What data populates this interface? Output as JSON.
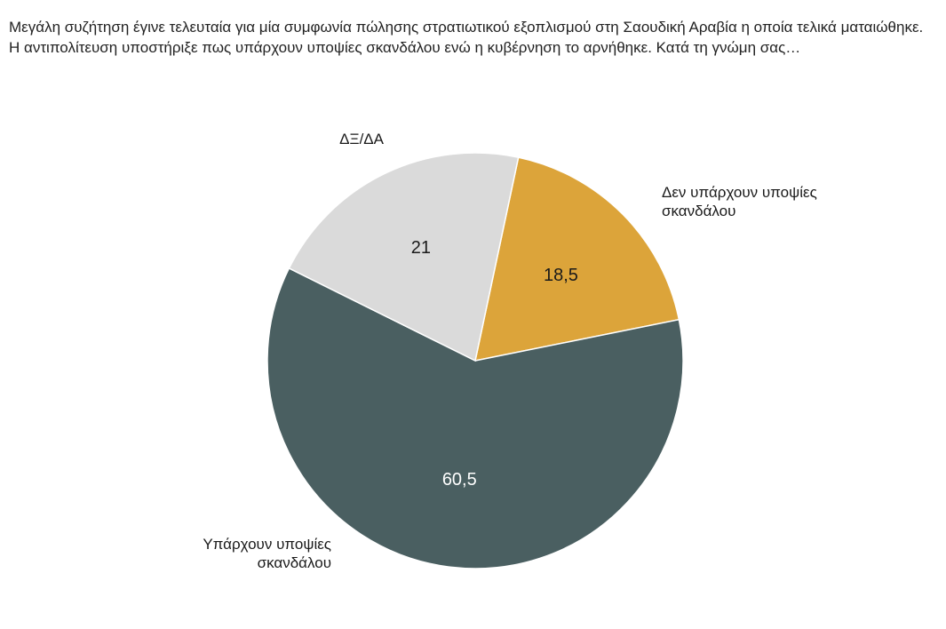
{
  "question": "Μεγάλη συζήτηση έγινε τελευταία για μία συμφωνία πώλησης στρατιωτικού εξοπλισμού στη Σαουδική Αραβία η οποία τελικά ματαιώθηκε. Η αντιπολίτευση υποστήριξε πως υπάρχουν υποψίες σκανδάλου ενώ η κυβέρνηση το αρνήθηκε. Κατά τη γνώμη σας…",
  "chart_data": {
    "type": "pie",
    "title": "",
    "slices": [
      {
        "label_lines": [
          "Δεν υπάρχουν υποψίες",
          "σκανδάλου"
        ],
        "value": 18.5,
        "value_label": "18,5",
        "color": "#dca43a",
        "value_color": "#1a1a1a"
      },
      {
        "label_lines": [
          "Υπάρχουν υποψίες",
          "σκανδάλου"
        ],
        "value": 60.5,
        "value_label": "60,5",
        "color": "#4a5f61",
        "value_color": "#ffffff"
      },
      {
        "label_lines": [
          "ΔΞ/ΔΑ"
        ],
        "value": 21,
        "value_label": "21",
        "color": "#dadada",
        "value_color": "#1a1a1a"
      }
    ]
  }
}
